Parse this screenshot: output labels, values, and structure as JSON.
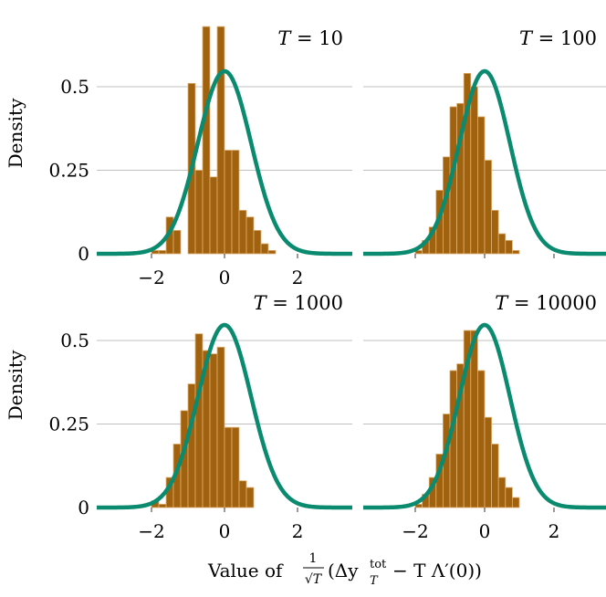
{
  "figure": {
    "ylabel": "Density",
    "xlabel_prefix": "Value of",
    "xlabel_frac_num": "1",
    "xlabel_frac_den": "√T",
    "xlabel_expr": "(Δy",
    "xlabel_sup": "tot",
    "xlabel_sub": "T",
    "xlabel_tail": " − T Λ′(0))"
  },
  "colors": {
    "bar_fill": "#a0620f",
    "bar_edge": "#e0b070",
    "curve": "#0a8a6e",
    "grid": "#c0c0c0"
  },
  "chart_data": [
    {
      "type": "bar",
      "title_var": "T",
      "title_value": "= 10",
      "bin_width": 0.2,
      "bins": [
        {
          "x": -2.0,
          "y": 0.01
        },
        {
          "x": -1.8,
          "y": 0.01
        },
        {
          "x": -1.6,
          "y": 0.11
        },
        {
          "x": -1.4,
          "y": 0.07
        },
        {
          "x": -1.2,
          "y": 0.0
        },
        {
          "x": -1.0,
          "y": 0.51
        },
        {
          "x": -0.8,
          "y": 0.25
        },
        {
          "x": -0.6,
          "y": 0.68
        },
        {
          "x": -0.4,
          "y": 0.23
        },
        {
          "x": -0.2,
          "y": 0.68
        },
        {
          "x": 0.0,
          "y": 0.31
        },
        {
          "x": 0.2,
          "y": 0.31
        },
        {
          "x": 0.4,
          "y": 0.13
        },
        {
          "x": 0.6,
          "y": 0.11
        },
        {
          "x": 0.8,
          "y": 0.07
        },
        {
          "x": 1.0,
          "y": 0.03
        },
        {
          "x": 1.2,
          "y": 0.01
        }
      ],
      "curve": "normal(0, 0.73)",
      "ylim": [
        0,
        0.7
      ],
      "xlim": [
        -3.5,
        3.5
      ],
      "yticks": [
        0,
        0.25,
        0.5
      ],
      "ytick_labels": [
        "0",
        "0.25",
        "0.5"
      ],
      "xticks": [
        -2,
        0,
        2
      ],
      "xtick_labels": [
        "−2",
        "0",
        "2"
      ]
    },
    {
      "type": "bar",
      "title_var": "T",
      "title_value": "= 100",
      "bin_width": 0.2,
      "bins": [
        {
          "x": -2.0,
          "y": 0.01
        },
        {
          "x": -1.8,
          "y": 0.04
        },
        {
          "x": -1.6,
          "y": 0.08
        },
        {
          "x": -1.4,
          "y": 0.19
        },
        {
          "x": -1.2,
          "y": 0.29
        },
        {
          "x": -1.0,
          "y": 0.44
        },
        {
          "x": -0.8,
          "y": 0.45
        },
        {
          "x": -0.6,
          "y": 0.54
        },
        {
          "x": -0.4,
          "y": 0.5
        },
        {
          "x": -0.2,
          "y": 0.41
        },
        {
          "x": 0.0,
          "y": 0.28
        },
        {
          "x": 0.2,
          "y": 0.13
        },
        {
          "x": 0.4,
          "y": 0.06
        },
        {
          "x": 0.6,
          "y": 0.04
        },
        {
          "x": 0.8,
          "y": 0.01
        }
      ],
      "curve": "normal(0, 0.73)",
      "ylim": [
        0,
        0.7
      ],
      "xlim": [
        -3.5,
        3.5
      ],
      "yticks": [
        0,
        0.25,
        0.5
      ],
      "xticks": [
        -2,
        0,
        2
      ]
    },
    {
      "type": "bar",
      "title_var": "T",
      "title_value": "= 1000",
      "bin_width": 0.2,
      "bins": [
        {
          "x": -2.0,
          "y": 0.02
        },
        {
          "x": -1.8,
          "y": 0.01
        },
        {
          "x": -1.6,
          "y": 0.09
        },
        {
          "x": -1.4,
          "y": 0.19
        },
        {
          "x": -1.2,
          "y": 0.29
        },
        {
          "x": -1.0,
          "y": 0.37
        },
        {
          "x": -0.8,
          "y": 0.52
        },
        {
          "x": -0.6,
          "y": 0.47
        },
        {
          "x": -0.4,
          "y": 0.46
        },
        {
          "x": -0.2,
          "y": 0.48
        },
        {
          "x": 0.0,
          "y": 0.24
        },
        {
          "x": 0.2,
          "y": 0.24
        },
        {
          "x": 0.4,
          "y": 0.08
        },
        {
          "x": 0.6,
          "y": 0.06
        }
      ],
      "curve": "normal(0, 0.73)",
      "ylim": [
        0,
        0.7
      ],
      "xlim": [
        -3.5,
        3.5
      ],
      "yticks": [
        0,
        0.25,
        0.5
      ],
      "ytick_labels": [
        "0",
        "0.25",
        "0.5"
      ],
      "xticks": [
        -2,
        0,
        2
      ],
      "xtick_labels": [
        "−2",
        "0",
        "2"
      ]
    },
    {
      "type": "bar",
      "title_var": "T",
      "title_value": "= 10000",
      "bin_width": 0.2,
      "bins": [
        {
          "x": -2.0,
          "y": 0.01
        },
        {
          "x": -1.8,
          "y": 0.04
        },
        {
          "x": -1.6,
          "y": 0.09
        },
        {
          "x": -1.4,
          "y": 0.16
        },
        {
          "x": -1.2,
          "y": 0.28
        },
        {
          "x": -1.0,
          "y": 0.41
        },
        {
          "x": -0.8,
          "y": 0.43
        },
        {
          "x": -0.6,
          "y": 0.53
        },
        {
          "x": -0.4,
          "y": 0.53
        },
        {
          "x": -0.2,
          "y": 0.41
        },
        {
          "x": 0.0,
          "y": 0.27
        },
        {
          "x": 0.2,
          "y": 0.19
        },
        {
          "x": 0.4,
          "y": 0.09
        },
        {
          "x": 0.6,
          "y": 0.06
        },
        {
          "x": 0.8,
          "y": 0.03
        }
      ],
      "curve": "normal(0, 0.73)",
      "ylim": [
        0,
        0.7
      ],
      "xlim": [
        -3.5,
        3.5
      ],
      "yticks": [
        0,
        0.25,
        0.5
      ],
      "xticks": [
        -2,
        0,
        2
      ],
      "xtick_labels": [
        "−2",
        "0",
        "2"
      ]
    }
  ]
}
